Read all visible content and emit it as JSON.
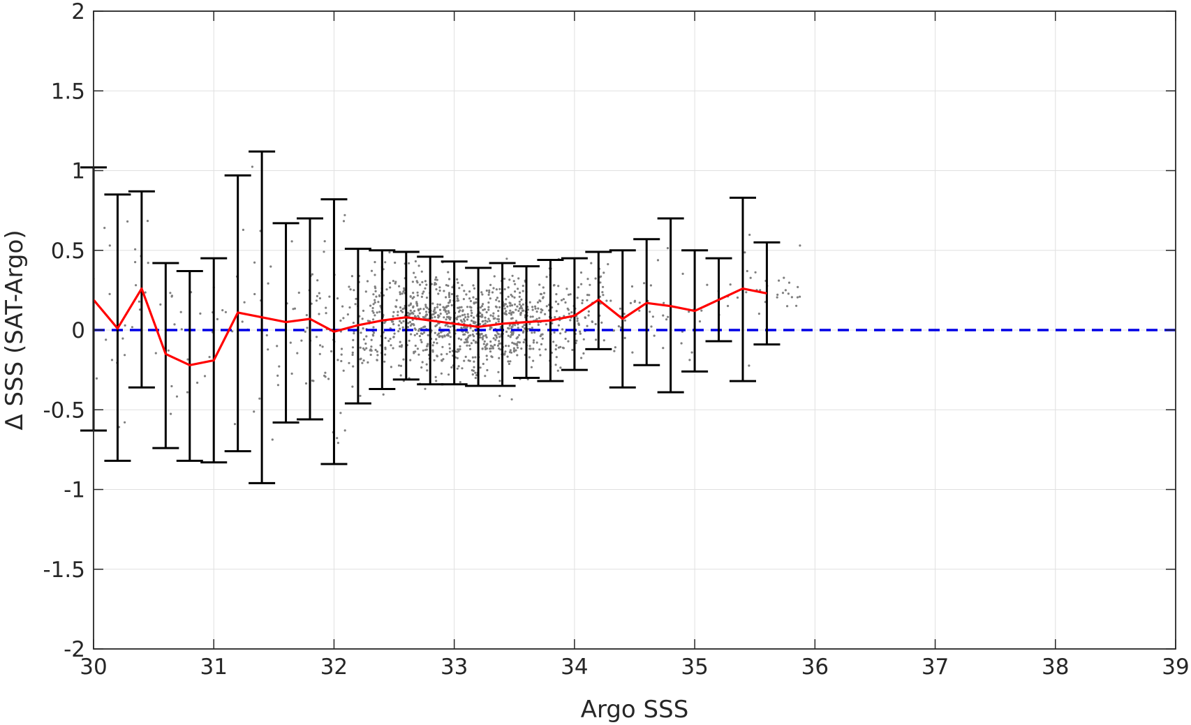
{
  "chart_data": {
    "type": "scatter",
    "title": "",
    "xlabel": "Argo SSS",
    "ylabel": "Δ SSS (SAT-Argo)",
    "xlim": [
      30,
      39
    ],
    "ylim": [
      -2,
      2
    ],
    "xticks": [
      "30",
      "31",
      "32",
      "33",
      "34",
      "35",
      "36",
      "37",
      "38",
      "39"
    ],
    "yticks": [
      "-2",
      "-1.5",
      "-1",
      "-0.5",
      "0",
      "0.5",
      "1",
      "1.5",
      "2"
    ],
    "grid": true,
    "colors": {
      "scatter": "#7f7f7f",
      "mean_line": "#ff0000",
      "error_bars": "#000000",
      "zero_line": "#0000e6",
      "grid": "#e0e0e0",
      "axes": "#262626"
    },
    "zero_line": {
      "y": 0,
      "style": "dashed"
    },
    "binned_stats": {
      "x": [
        30.0,
        30.2,
        30.4,
        30.6,
        30.8,
        31.0,
        31.2,
        31.4,
        31.6,
        31.8,
        32.0,
        32.2,
        32.4,
        32.6,
        32.8,
        33.0,
        33.2,
        33.4,
        33.6,
        33.8,
        34.0,
        34.2,
        34.4,
        34.6,
        34.8,
        35.0,
        35.2,
        35.4,
        35.6
      ],
      "mean": [
        0.19,
        0.01,
        0.26,
        -0.15,
        -0.22,
        -0.19,
        0.11,
        0.08,
        0.05,
        0.07,
        -0.01,
        0.03,
        0.06,
        0.08,
        0.06,
        0.04,
        0.02,
        0.04,
        0.05,
        0.06,
        0.09,
        0.19,
        0.07,
        0.17,
        0.15,
        0.12,
        0.19,
        0.26,
        0.23
      ],
      "upper": [
        1.02,
        0.85,
        0.87,
        0.42,
        0.37,
        0.45,
        0.97,
        1.12,
        0.67,
        0.7,
        0.82,
        0.51,
        0.5,
        0.49,
        0.46,
        0.43,
        0.39,
        0.42,
        0.4,
        0.44,
        0.45,
        0.49,
        0.5,
        0.57,
        0.7,
        0.5,
        0.45,
        0.83,
        0.55
      ],
      "lower": [
        -0.63,
        -0.82,
        -0.36,
        -0.74,
        -0.82,
        -0.83,
        -0.76,
        -0.96,
        -0.58,
        -0.56,
        -0.84,
        -0.46,
        -0.37,
        -0.31,
        -0.34,
        -0.34,
        -0.35,
        -0.35,
        -0.3,
        -0.32,
        -0.25,
        -0.12,
        -0.36,
        -0.22,
        -0.39,
        -0.26,
        -0.07,
        -0.32,
        -0.09
      ]
    }
  }
}
